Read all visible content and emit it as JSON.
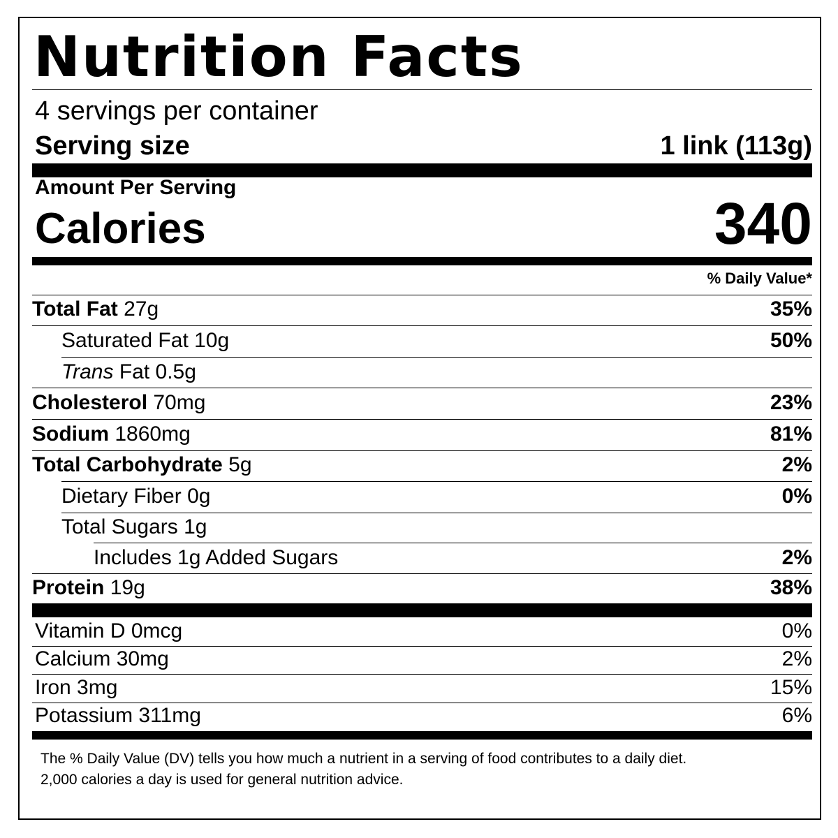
{
  "title": "Nutrition Facts",
  "servings_per_container": "4 servings per container",
  "serving_size": {
    "label": "Serving size",
    "value": "1 link (113g)"
  },
  "amount_per_serving": "Amount Per Serving",
  "calories": {
    "label": "Calories",
    "value": "340"
  },
  "daily_value_header": "% Daily Value*",
  "nutrients": [
    {
      "name": "Total Fat",
      "amount": "27g",
      "dv": "35%"
    },
    {
      "name": "Saturated Fat",
      "amount": "10g",
      "dv": "50%"
    },
    {
      "name_italic": "Trans",
      "name": "Fat",
      "amount": "0.5g",
      "dv": ""
    },
    {
      "name": "Cholesterol",
      "amount": "70mg",
      "dv": "23%"
    },
    {
      "name": "Sodium",
      "amount": "1860mg",
      "dv": "81%"
    },
    {
      "name": "Total Carbohydrate",
      "amount": "5g",
      "dv": "2%"
    },
    {
      "name": "Dietary Fiber",
      "amount": "0g",
      "dv": "0%"
    },
    {
      "name": "Total Sugars",
      "amount": "1g",
      "dv": ""
    },
    {
      "name": "Includes 1g Added Sugars",
      "amount": "",
      "dv": "2%"
    },
    {
      "name": "Protein",
      "amount": "19g",
      "dv": "38%"
    }
  ],
  "vitamins": [
    {
      "name": "Vitamin D",
      "amount": "0mcg",
      "dv": "0%"
    },
    {
      "name": "Calcium",
      "amount": "30mg",
      "dv": "2%"
    },
    {
      "name": "Iron",
      "amount": "3mg",
      "dv": "15%"
    },
    {
      "name": "Potassium",
      "amount": "311mg",
      "dv": "6%"
    }
  ],
  "footnote": [
    "The % Daily Value (DV) tells you how much a nutrient in a serving of food contributes to a daily diet.",
    "2,000 calories a day is used for general nutrition advice."
  ]
}
